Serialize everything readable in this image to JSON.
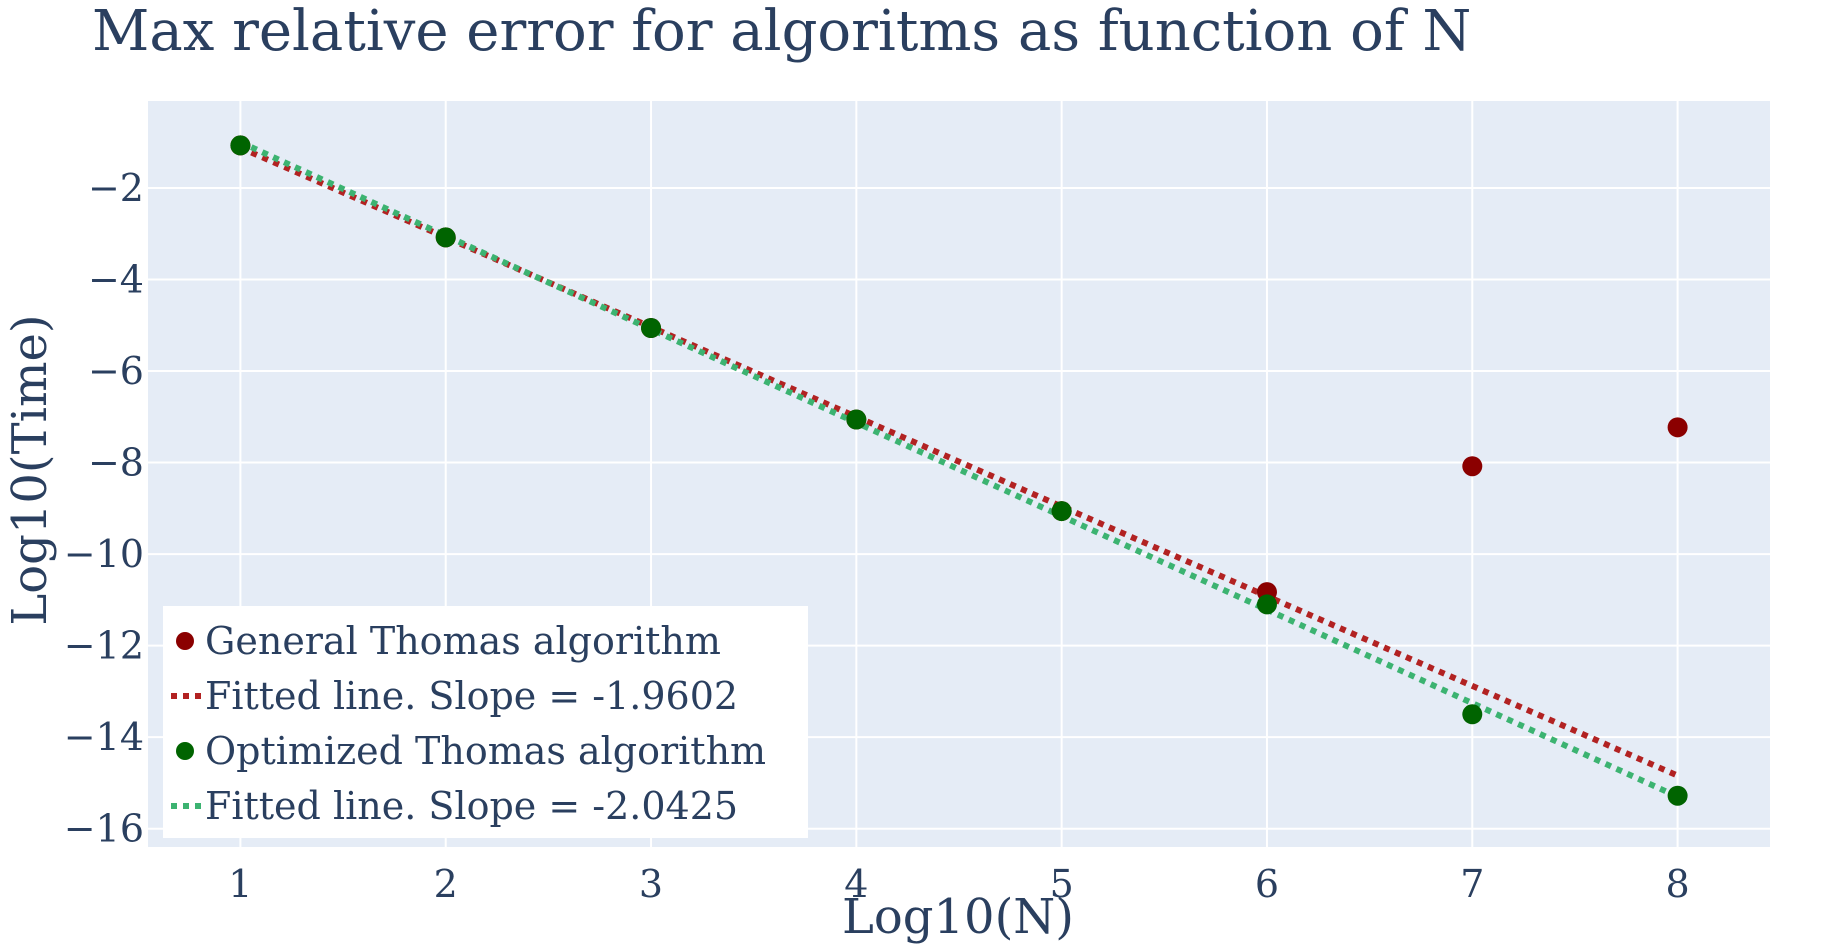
{
  "chart_data": {
    "type": "scatter",
    "title": "Max relative error for algoritms as function of N",
    "xlabel": "Log10(N)",
    "ylabel": "Log10(Time)",
    "xlim": [
      0.55,
      8.45
    ],
    "ylim": [
      -16.4,
      -0.1
    ],
    "xticks": [
      1,
      2,
      3,
      4,
      5,
      6,
      7,
      8
    ],
    "yticks": [
      -2,
      -4,
      -6,
      -8,
      -10,
      -12,
      -14,
      -16
    ],
    "grid": true,
    "legend_position": "bottom-left",
    "series": [
      {
        "name": "General Thomas algorithm",
        "kind": "markers",
        "color": "#8b0000",
        "x": [
          1,
          2,
          3,
          4,
          5,
          6,
          7,
          8
        ],
        "y": [
          -1.07,
          -3.08,
          -5.06,
          -7.06,
          -9.06,
          -10.83,
          -8.08,
          -7.23
        ]
      },
      {
        "name": "Fitted line. Slope = -1.9602",
        "kind": "dotted-line",
        "color": "#b22222",
        "x": [
          1,
          8
        ],
        "y": [
          -1.12,
          -14.84
        ]
      },
      {
        "name": "Optimized Thomas algorithm",
        "kind": "markers",
        "color": "#006400",
        "x": [
          1,
          2,
          3,
          4,
          5,
          6,
          7,
          8
        ],
        "y": [
          -1.07,
          -3.08,
          -5.06,
          -7.06,
          -9.06,
          -11.1,
          -13.5,
          -15.28
        ]
      },
      {
        "name": "Fitted line. Slope = -2.0425",
        "kind": "dotted-line",
        "color": "#3cb371",
        "x": [
          1,
          8
        ],
        "y": [
          -1.0,
          -15.3
        ]
      }
    ]
  }
}
